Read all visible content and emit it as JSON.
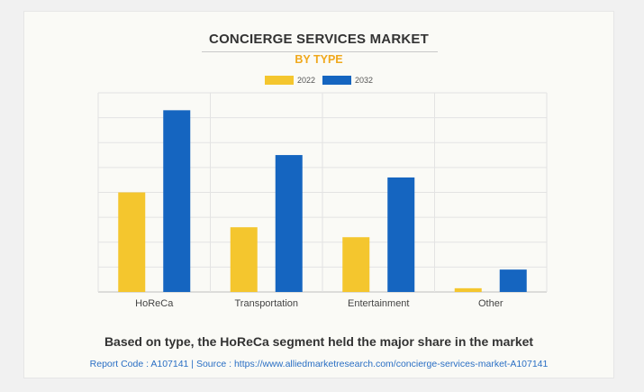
{
  "chart_data": {
    "type": "bar",
    "title": "CONCIERGE SERVICES MARKET",
    "subtitle": "BY TYPE",
    "categories": [
      "HoReCa",
      "Transportation",
      "Entertainment",
      "Other"
    ],
    "series": [
      {
        "name": "2022",
        "color": "#f4c62e",
        "values": [
          40,
          26,
          22,
          1.5
        ]
      },
      {
        "name": "2032",
        "color": "#1565c0",
        "values": [
          73,
          55,
          46,
          9
        ]
      }
    ],
    "ylim": [
      0,
      80
    ],
    "grid": true,
    "legend": "top-center"
  },
  "footer": {
    "caption": "Based on type, the HoReCa segment held the major share in the market",
    "source": "Report Code : A107141  |  Source : https://www.alliedmarketresearch.com/concierge-services-market-A107141"
  }
}
